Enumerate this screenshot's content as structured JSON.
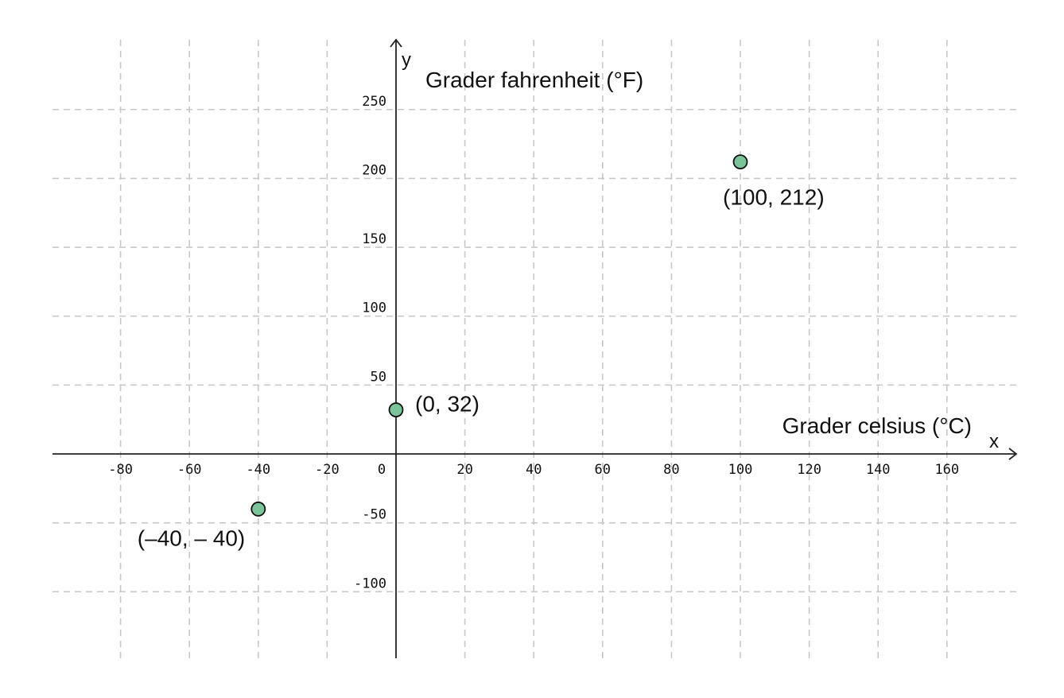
{
  "chart_data": {
    "type": "scatter",
    "title": "",
    "x_axis_letter": "x",
    "y_axis_letter": "y",
    "xlabel": "Grader celsius (°C)",
    "ylabel": "Grader fahrenheit (°F)",
    "xlim": [
      -100,
      180
    ],
    "ylim": [
      -148,
      285
    ],
    "grid": true,
    "x_ticks": [
      -80,
      -60,
      -40,
      -20,
      0,
      20,
      40,
      60,
      80,
      100,
      120,
      140,
      160
    ],
    "x_tick_labels": [
      "-80",
      "-60",
      "-40",
      "-20",
      "0",
      "20",
      "40",
      "60",
      "80",
      "100",
      "120",
      "140",
      "160"
    ],
    "y_ticks": [
      -100,
      -50,
      50,
      100,
      150,
      200,
      250
    ],
    "y_tick_labels": [
      "-100",
      "-50",
      "50",
      "100",
      "150",
      "200",
      "250"
    ],
    "points": [
      {
        "x": -40,
        "y": -40,
        "label": "(–40, – 40)"
      },
      {
        "x": 0,
        "y": 32,
        "label": "(0, 32)"
      },
      {
        "x": 100,
        "y": 212,
        "label": "(100, 212)"
      }
    ],
    "point_color": "#7bc49a"
  }
}
